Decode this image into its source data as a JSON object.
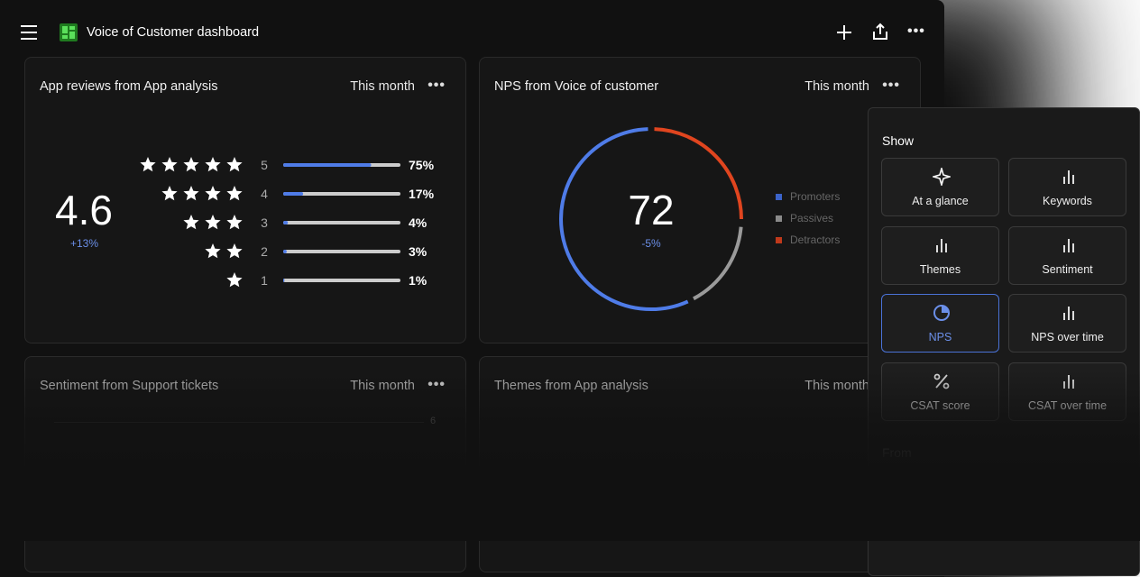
{
  "header": {
    "title": "Voice of Customer dashboard"
  },
  "cards": [
    {
      "title": "App reviews from App analysis",
      "period": "This month",
      "score": "4.6",
      "change": "+13%",
      "ratings": [
        {
          "stars": 5,
          "value": 75,
          "label": "75%"
        },
        {
          "stars": 4,
          "value": 17,
          "label": "17%"
        },
        {
          "stars": 3,
          "value": 4,
          "label": "4%"
        },
        {
          "stars": 2,
          "value": 3,
          "label": "3%"
        },
        {
          "stars": 1,
          "value": 1,
          "label": "1%"
        }
      ]
    },
    {
      "title": "NPS from Voice of customer",
      "period": "This month",
      "score": "72",
      "change": "-5%",
      "legend": [
        "Promoters",
        "Passives",
        "Detractors"
      ]
    },
    {
      "title": "Sentiment from Support tickets",
      "period": "This month",
      "axis_tick": "6"
    },
    {
      "title": "Themes from App analysis",
      "period": "This month"
    }
  ],
  "panel": {
    "heading": "Show",
    "options": [
      {
        "label": "At a glance"
      },
      {
        "label": "Keywords"
      },
      {
        "label": "Themes"
      },
      {
        "label": "Sentiment"
      },
      {
        "label": "NPS",
        "selected": true
      },
      {
        "label": "NPS over time"
      },
      {
        "label": "CSAT score"
      },
      {
        "label": "CSAT over time"
      }
    ],
    "footer": "From"
  }
}
